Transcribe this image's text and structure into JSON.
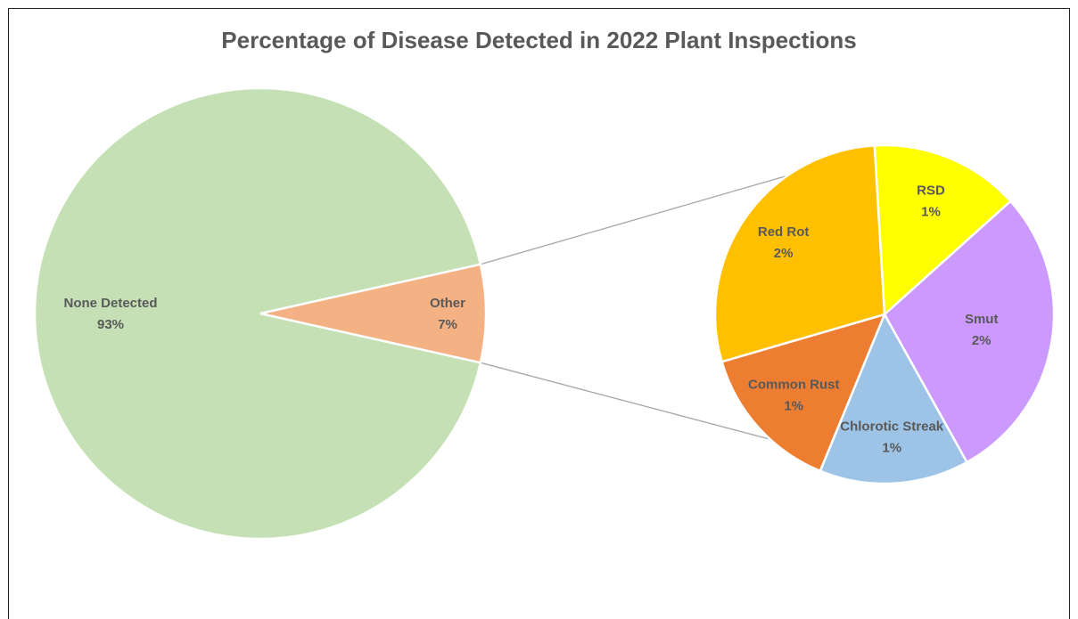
{
  "chart_data": [
    {
      "type": "pie",
      "title": "Percentage of Disease Detected in 2022 Plant Inspections",
      "slices": [
        {
          "label": "None Detected",
          "value": 93,
          "value_label": "93%",
          "color": "#c5e0b4"
        },
        {
          "label": "Other",
          "value": 7,
          "value_label": "7%",
          "color": "#f4b183"
        }
      ]
    },
    {
      "type": "pie",
      "title": "",
      "expands": "Other",
      "slices": [
        {
          "label": "RSD",
          "value": 1,
          "value_label": "1%",
          "color": "#ffff00"
        },
        {
          "label": "Smut",
          "value": 2,
          "value_label": "2%",
          "color": "#cc99ff"
        },
        {
          "label": "Chlorotic Streak",
          "value": 1,
          "value_label": "1%",
          "color": "#9dc3e6"
        },
        {
          "label": "Common Rust",
          "value": 1,
          "value_label": "1%",
          "color": "#ed7d31"
        },
        {
          "label": "Red Rot",
          "value": 2,
          "value_label": "2%",
          "color": "#ffc000"
        }
      ]
    }
  ]
}
